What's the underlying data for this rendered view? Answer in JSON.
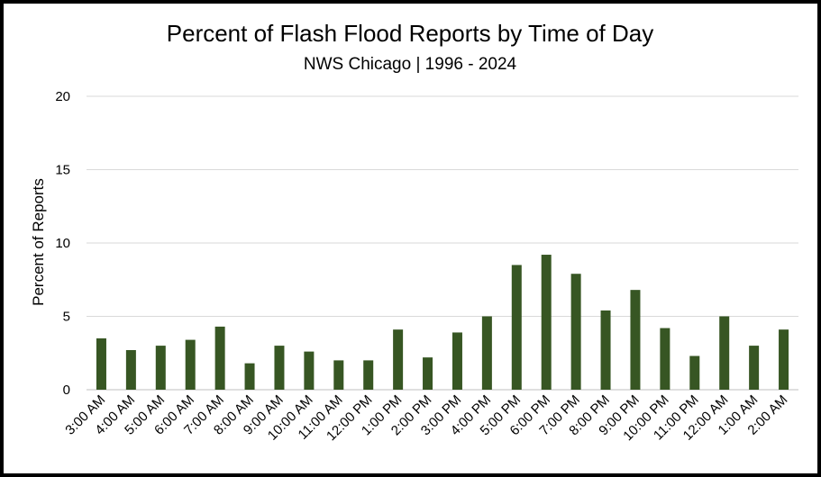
{
  "chart_data": {
    "type": "bar",
    "title": "Percent of Flash Flood Reports by Time of Day",
    "subtitle": "NWS Chicago | 1996 - 2024",
    "ylabel": "Percent of Reports",
    "xlabel": "",
    "ylim": [
      0,
      20
    ],
    "yticks": [
      "0",
      "5",
      "10",
      "15",
      "20"
    ],
    "grid": true,
    "legend": "none",
    "bar_color": "#375623",
    "categories": [
      "3:00 AM",
      "4:00 AM",
      "5:00 AM",
      "6:00 AM",
      "7:00 AM",
      "8:00 AM",
      "9:00 AM",
      "10:00 AM",
      "11:00 AM",
      "12:00 PM",
      "1:00 PM",
      "2:00 PM",
      "3:00 PM",
      "4:00 PM",
      "5:00 PM",
      "6:00 PM",
      "7:00 PM",
      "8:00 PM",
      "9:00 PM",
      "10:00 PM",
      "11:00 PM",
      "12:00 AM",
      "1:00 AM",
      "2:00 AM"
    ],
    "values": [
      3.5,
      2.7,
      3.0,
      3.4,
      4.3,
      1.8,
      3.0,
      2.6,
      2.0,
      2.0,
      4.1,
      2.2,
      3.9,
      5.0,
      8.5,
      9.2,
      7.9,
      5.4,
      6.8,
      4.2,
      2.3,
      5.0,
      3.0,
      4.1
    ]
  }
}
